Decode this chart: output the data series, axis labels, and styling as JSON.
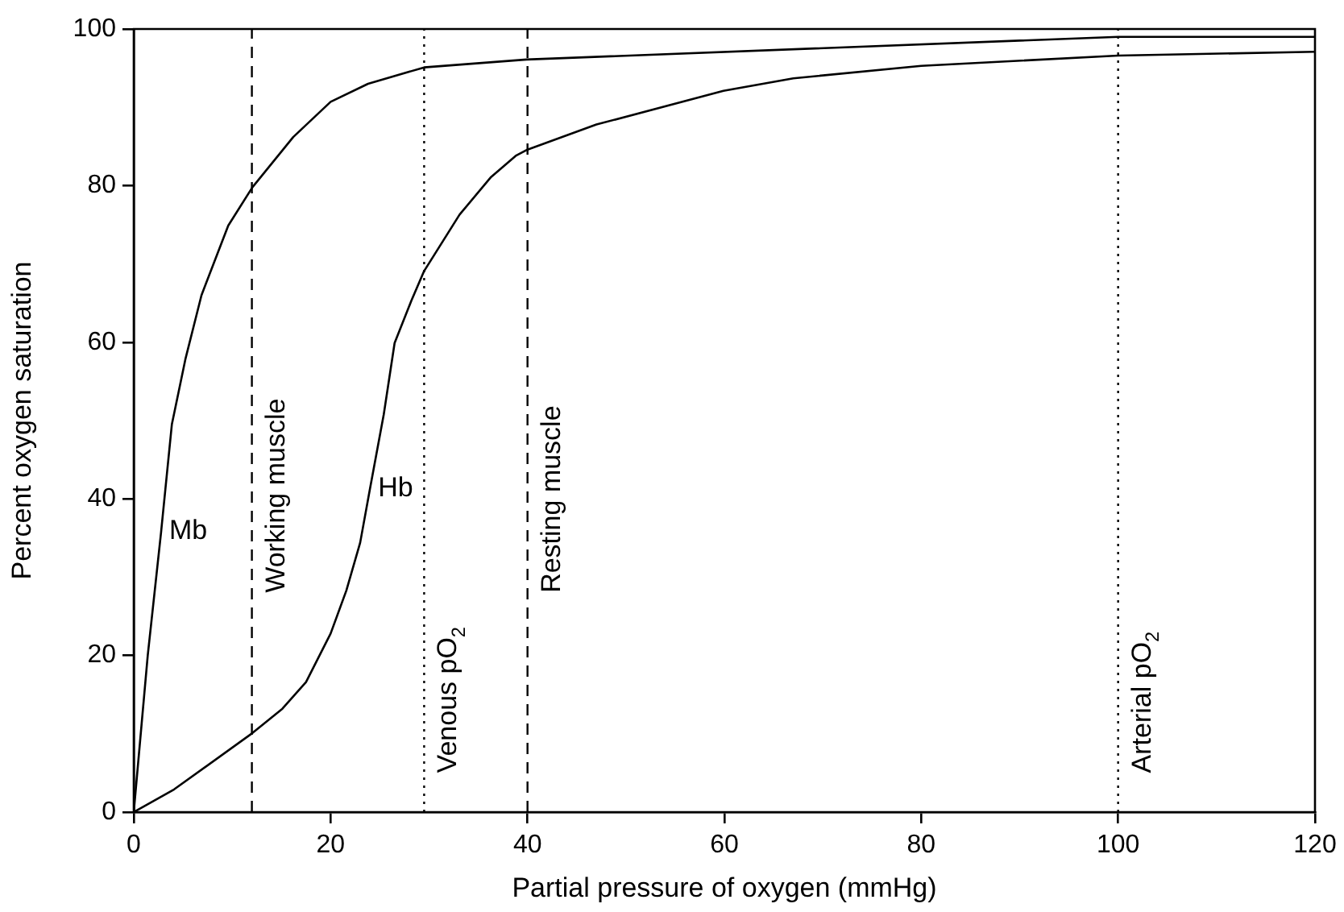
{
  "chart_data": {
    "type": "line",
    "xlabel": "Partial pressure of oxygen (mmHg)",
    "ylabel": "Percent oxygen saturation",
    "xlim": [
      0,
      120
    ],
    "xticks": [
      0,
      20,
      40,
      60,
      80,
      100,
      120
    ],
    "ylim": [
      0,
      100
    ],
    "yticks": [
      0,
      20,
      40,
      60,
      80,
      100
    ],
    "grid": false,
    "legend": false,
    "marker": "none",
    "line_style": "solid",
    "series": [
      {
        "name": "Mb",
        "color": "#000000",
        "x": [
          0,
          1.42,
          2.78,
          3.87,
          5.24,
          6.88,
          9.6,
          12.06,
          16.2,
          20,
          23.8,
          29.5,
          39.9,
          100,
          120
        ],
        "values": [
          0,
          20,
          35.8,
          49.5,
          57.8,
          66,
          74.9,
          79.8,
          86.2,
          90.7,
          93,
          95.1,
          96.1,
          99,
          99
        ]
      },
      {
        "name": "Hb",
        "color": "#000000",
        "x": [
          0,
          4.1,
          12.06,
          15.1,
          17.5,
          20,
          21.6,
          23,
          24,
          25.4,
          26.5,
          28.2,
          29.5,
          33.1,
          36.3,
          38.8,
          40,
          47,
          59.9,
          67,
          80,
          100,
          120
        ],
        "values": [
          0,
          2.9,
          10.1,
          13.2,
          16.6,
          22.8,
          28.3,
          34.4,
          41.3,
          50.8,
          59.9,
          65.3,
          69.1,
          76.3,
          81.1,
          83.8,
          84.6,
          87.8,
          92.1,
          93.7,
          95.3,
          96.6,
          97.1
        ]
      }
    ],
    "ref_lines": [
      {
        "axis": "x",
        "value": 12,
        "label": "Working muscle",
        "line_style": "dashed"
      },
      {
        "axis": "x",
        "value": 29.5,
        "label": "Venous pO$_{2}$",
        "line_style": "dotted"
      },
      {
        "axis": "x",
        "value": 40,
        "label": "Resting muscle",
        "line_style": "dashed"
      },
      {
        "axis": "x",
        "value": 100,
        "label": "Arterial pO$_{2}$",
        "line_style": "dotted"
      }
    ]
  }
}
